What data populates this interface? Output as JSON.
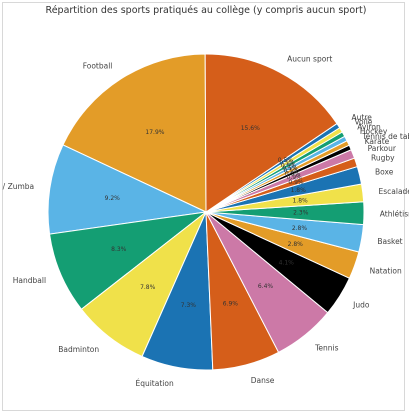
{
  "chart_data": {
    "type": "pie",
    "title": "Répartition des sports pratiqués au collège (y compris aucun sport)",
    "slices": [
      {
        "label": "Football",
        "value": 17.9,
        "pct_label": "17.9%",
        "color": "#e39c28"
      },
      {
        "label": "Gym / Zumba",
        "value": 9.2,
        "pct_label": "9.2%",
        "color": "#5ab4e6"
      },
      {
        "label": "Handball",
        "value": 8.3,
        "pct_label": "8.3%",
        "color": "#149e73"
      },
      {
        "label": "Badminton",
        "value": 7.8,
        "pct_label": "7.8%",
        "color": "#f0e14a"
      },
      {
        "label": "Équitation",
        "value": 7.3,
        "pct_label": "7.3%",
        "color": "#1b73b3"
      },
      {
        "label": "Danse",
        "value": 6.9,
        "pct_label": "6.9%",
        "color": "#d55e1a"
      },
      {
        "label": "Tennis",
        "value": 6.4,
        "pct_label": "6.4%",
        "color": "#cc79a7"
      },
      {
        "label": "Judo",
        "value": 4.1,
        "pct_label": "4.1%",
        "color": "#000000"
      },
      {
        "label": "Natation",
        "value": 2.8,
        "pct_label": "2.8%",
        "color": "#e39c28"
      },
      {
        "label": "Basket",
        "value": 2.8,
        "pct_label": "2.8%",
        "color": "#5ab4e6"
      },
      {
        "label": "Athlétisme",
        "value": 2.3,
        "pct_label": "2.3%",
        "color": "#149e73"
      },
      {
        "label": "Escalade",
        "value": 1.8,
        "pct_label": "1.8%",
        "color": "#f0e14a"
      },
      {
        "label": "Boxe",
        "value": 1.8,
        "pct_label": "1.8%",
        "color": "#1b73b3"
      },
      {
        "label": "Rugby",
        "value": 0.9,
        "pct_label": "0.9%",
        "color": "#d55e1a"
      },
      {
        "label": "Parkour",
        "value": 0.9,
        "pct_label": "0.9%",
        "color": "#cc79a7"
      },
      {
        "label": "Karate",
        "value": 0.5,
        "pct_label": "0.5%",
        "color": "#000000"
      },
      {
        "label": "Tennis de table",
        "value": 0.5,
        "pct_label": "0.5%",
        "color": "#e39c28"
      },
      {
        "label": "Hockey",
        "value": 0.5,
        "pct_label": "0.5%",
        "color": "#5ab4e6"
      },
      {
        "label": "Aviron",
        "value": 0.5,
        "pct_label": "0.5%",
        "color": "#149e73"
      },
      {
        "label": "Voile",
        "value": 0.5,
        "pct_label": "0.5%",
        "color": "#f0e14a"
      },
      {
        "label": "Autre",
        "value": 0.5,
        "pct_label": "0.5%",
        "color": "#1b73b3"
      },
      {
        "label": "Aucun sport",
        "value": 15.6,
        "pct_label": "15.6%",
        "color": "#d55e1a"
      }
    ]
  }
}
